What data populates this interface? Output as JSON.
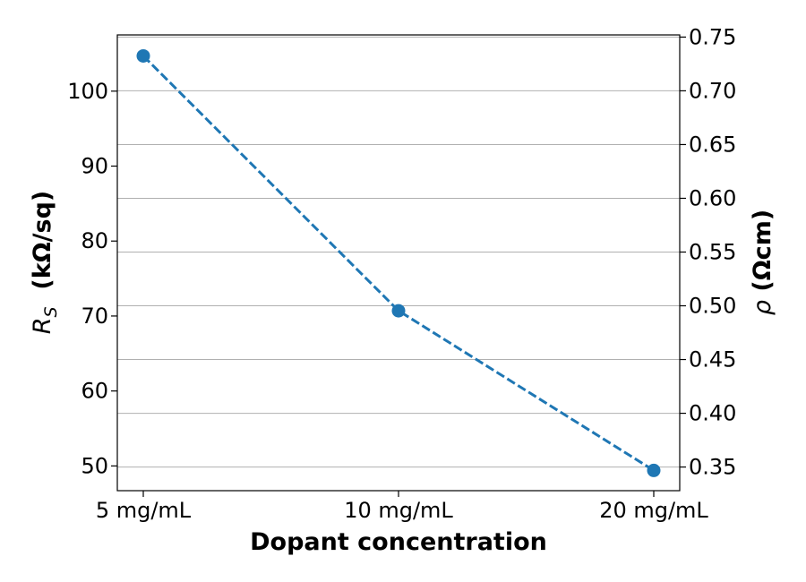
{
  "chart_data": {
    "type": "line",
    "categories": [
      "5 mg/mL",
      "10 mg/mL",
      "20 mg/mL"
    ],
    "series": [
      {
        "values": [
          104.7,
          70.7,
          49.4
        ],
        "color": "#1f77b4",
        "line_style": "dashed",
        "marker": "circle"
      }
    ],
    "xlabel": "Dopant concentration",
    "ylabel": {
      "symbol": "R",
      "subscript": "S",
      "unit": "(kΩ/sq)"
    },
    "ylim": [
      46.7,
      107.5
    ],
    "yticks": [
      50,
      60,
      70,
      80,
      90,
      100
    ],
    "y2label": {
      "symbol": "ρ",
      "unit": "(Ωcm)"
    },
    "y2lim": [
      0.328,
      0.752
    ],
    "y2ticks": [
      "0.35",
      "0.40",
      "0.45",
      "0.50",
      "0.55",
      "0.60",
      "0.65",
      "0.70",
      "0.75"
    ],
    "grid": "horizontal (right axis ticks)",
    "grid_color": "#b0b0b0"
  }
}
